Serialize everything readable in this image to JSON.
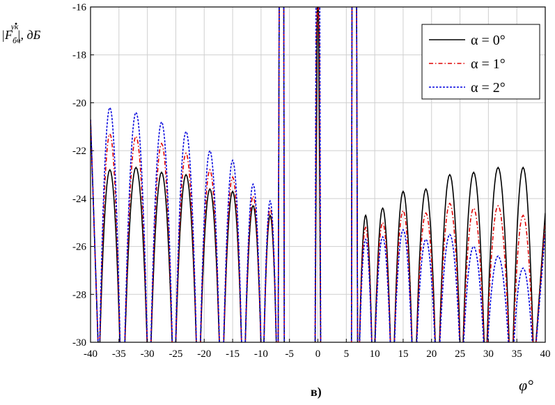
{
  "chart_data": {
    "type": "line",
    "title": "",
    "xlabel": "φ°",
    "ylabel": "|F̊бч^ук|, дБ",
    "ylabel_parts": {
      "main": "|F",
      "sup": "ук",
      "sub": "бч",
      "suffix": "|, дБ"
    },
    "caption": "в)",
    "xlim": [
      -40,
      40
    ],
    "ylim": [
      -30,
      -16
    ],
    "x_ticks": [
      -40,
      -35,
      -30,
      -25,
      -20,
      -15,
      -10,
      -5,
      0,
      5,
      10,
      15,
      20,
      25,
      30,
      35,
      40
    ],
    "x_tick_labels": [
      "-40",
      "-35",
      "-30",
      "-25",
      "-20",
      "-15",
      "-10",
      "-5",
      "0",
      "5",
      "10",
      "15",
      "20",
      "25",
      "30",
      "35",
      "40"
    ],
    "y_ticks": [
      -30,
      -28,
      -26,
      -24,
      -22,
      -20,
      -18,
      -16
    ],
    "y_tick_labels": [
      "-30",
      "-28",
      "-26",
      "-24",
      "-22",
      "-20",
      "-18",
      "-16"
    ],
    "grid": true,
    "legend_position": "top-right",
    "series": [
      {
        "name": "α = 0°",
        "color": "#000000",
        "dash": "solid",
        "peaks_left": [
          {
            "x": -36.6,
            "y": -22.8
          },
          {
            "x": -32.0,
            "y": -22.7
          },
          {
            "x": -27.5,
            "y": -22.9
          },
          {
            "x": -23.2,
            "y": -23.0
          },
          {
            "x": -19.0,
            "y": -23.6
          },
          {
            "x": -15.0,
            "y": -23.7
          },
          {
            "x": -11.4,
            "y": -24.3
          },
          {
            "x": -8.4,
            "y": -24.7
          }
        ],
        "peaks_right": [
          {
            "x": 8.4,
            "y": -24.7
          },
          {
            "x": 11.4,
            "y": -24.4
          },
          {
            "x": 15.0,
            "y": -23.7
          },
          {
            "x": 19.0,
            "y": -23.6
          },
          {
            "x": 23.2,
            "y": -23.0
          },
          {
            "x": 27.4,
            "y": -22.9
          },
          {
            "x": 31.7,
            "y": -22.7
          },
          {
            "x": 36.1,
            "y": -22.7
          }
        ]
      },
      {
        "name": "α = 1°",
        "color": "#e00000",
        "dash": "dashdot",
        "peaks_left": [
          {
            "x": -36.6,
            "y": -21.3
          },
          {
            "x": -32.0,
            "y": -21.4
          },
          {
            "x": -27.5,
            "y": -21.7
          },
          {
            "x": -23.2,
            "y": -22.1
          },
          {
            "x": -19.0,
            "y": -22.8
          },
          {
            "x": -15.0,
            "y": -23.1
          },
          {
            "x": -11.4,
            "y": -23.9
          },
          {
            "x": -8.4,
            "y": -24.4
          }
        ],
        "peaks_right": [
          {
            "x": 8.4,
            "y": -25.2
          },
          {
            "x": 11.4,
            "y": -25.0
          },
          {
            "x": 15.0,
            "y": -24.5
          },
          {
            "x": 19.0,
            "y": -24.6
          },
          {
            "x": 23.2,
            "y": -24.2
          },
          {
            "x": 27.4,
            "y": -24.4
          },
          {
            "x": 31.7,
            "y": -24.3
          },
          {
            "x": 36.1,
            "y": -24.7
          }
        ]
      },
      {
        "name": "α = 2°",
        "color": "#0000dd",
        "dash": "dashed",
        "peaks_left": [
          {
            "x": -36.6,
            "y": -20.2
          },
          {
            "x": -32.0,
            "y": -20.4
          },
          {
            "x": -27.5,
            "y": -20.8
          },
          {
            "x": -23.2,
            "y": -21.2
          },
          {
            "x": -19.0,
            "y": -22.0
          },
          {
            "x": -15.0,
            "y": -22.4
          },
          {
            "x": -11.4,
            "y": -23.4
          },
          {
            "x": -8.4,
            "y": -24.1
          }
        ],
        "peaks_right": [
          {
            "x": 8.4,
            "y": -25.7
          },
          {
            "x": 11.4,
            "y": -25.6
          },
          {
            "x": 15.0,
            "y": -25.3
          },
          {
            "x": 19.0,
            "y": -25.7
          },
          {
            "x": 23.2,
            "y": -25.5
          },
          {
            "x": 27.4,
            "y": -26.0
          },
          {
            "x": 31.7,
            "y": -26.4
          },
          {
            "x": 36.1,
            "y": -26.9
          }
        ]
      }
    ]
  }
}
